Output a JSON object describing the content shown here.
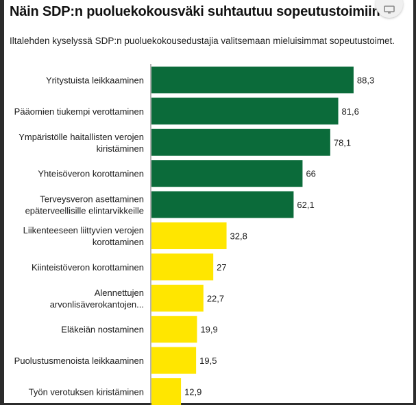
{
  "header": {
    "title": "Näin SDP:n puoluekokousväki suhtautuu sopeutustoimiin",
    "subtitle": "Iltalehden kyselyssä SDP:n puoluekokousedustajia valitsemaan mieluisimmat sopeutustoimet.",
    "action_icon": "monitor-icon"
  },
  "chart_data": {
    "type": "bar",
    "orientation": "horizontal",
    "title": "Näin SDP:n puoluekokousväki suhtautuu sopeutustoimiin",
    "subtitle": "Iltalehden kyselyssä SDP:n puoluekokousedustajia valitsemaan mieluisimmat sopeutustoimet.",
    "categories": [
      [
        "Yritystuista leikkaaminen"
      ],
      [
        "Pääomien tiukempi verottaminen"
      ],
      [
        "Ympäristölle haitallisten verojen",
        "kiristäminen"
      ],
      [
        "Yhteisöveron korottaminen"
      ],
      [
        "Terveysveron asettaminen",
        "epäterveellisille elintarvikkeille"
      ],
      [
        "Liikenteeseen liittyvien verojen",
        "korottaminen"
      ],
      [
        "Kiinteistöveron korottaminen"
      ],
      [
        "Alennettujen",
        "arvonlisäverokantojen..."
      ],
      [
        "Eläkeiän nostaminen"
      ],
      [
        "Puolustusmenoista leikkaaminen"
      ],
      [
        "Työn verotuksen kiristäminen"
      ]
    ],
    "values": [
      88.3,
      81.6,
      78.1,
      66,
      62.1,
      32.8,
      27,
      22.7,
      19.9,
      19.5,
      12.9
    ],
    "value_labels": [
      "88,3",
      "81,6",
      "78,1",
      "66",
      "62,1",
      "32,8",
      "27",
      "22,7",
      "19,9",
      "19,5",
      "12,9"
    ],
    "bar_colors": [
      "#0b6b3a",
      "#0b6b3a",
      "#0b6b3a",
      "#0b6b3a",
      "#0b6b3a",
      "#ffe600",
      "#ffe600",
      "#ffe600",
      "#ffe600",
      "#ffe600",
      "#ffe600"
    ],
    "xlim": [
      0,
      100
    ],
    "grid": false,
    "legend": "none"
  }
}
